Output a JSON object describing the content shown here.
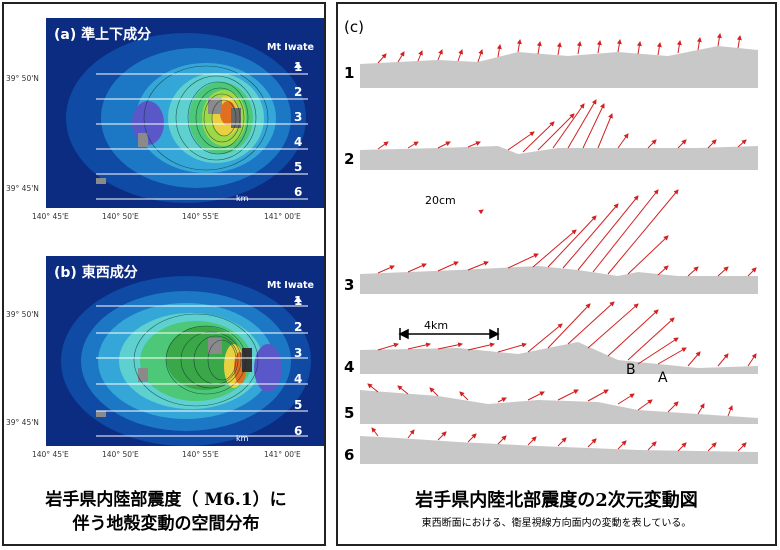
{
  "left": {
    "map_a": {
      "label": "(a) 準上下成分",
      "mountain": "Mt Iwate",
      "profiles": [
        "1",
        "2",
        "3",
        "4",
        "5",
        "6"
      ],
      "lat_labels": [
        "39° 50'N",
        "39° 45'N"
      ],
      "lon_labels": [
        "140° 45'E",
        "140° 50'E",
        "140° 55'E",
        "141° 00'E"
      ],
      "scale": "km"
    },
    "map_b": {
      "label": "(b) 東西成分",
      "mountain": "Mt Iwate",
      "profiles": [
        "1",
        "2",
        "3",
        "4",
        "5",
        "6"
      ],
      "lat_labels": [
        "39° 50'N",
        "39° 45'N"
      ],
      "lon_labels": [
        "140° 45'E",
        "140° 50'E",
        "140° 55'E",
        "141° 00'E"
      ],
      "scale": "km"
    },
    "caption_line1": "岩手県内陸部震度（ M6.1）に",
    "caption_line2": "伴う地殻変動の空間分布"
  },
  "right": {
    "panel_label": "(c)",
    "profiles": [
      "1",
      "2",
      "3",
      "4",
      "5",
      "6"
    ],
    "scale_vector": "20cm",
    "scale_distance": "4km",
    "point_b": "B",
    "point_a": "A",
    "title": "岩手県内陸北部震度の2次元変動図",
    "subtitle": "東西断面における、衛星視線方向面内の変動を表している。"
  },
  "colors": {
    "arrow": "#d42020",
    "ground": "#c8c8c8",
    "map_bg": "#0a2a7a"
  }
}
